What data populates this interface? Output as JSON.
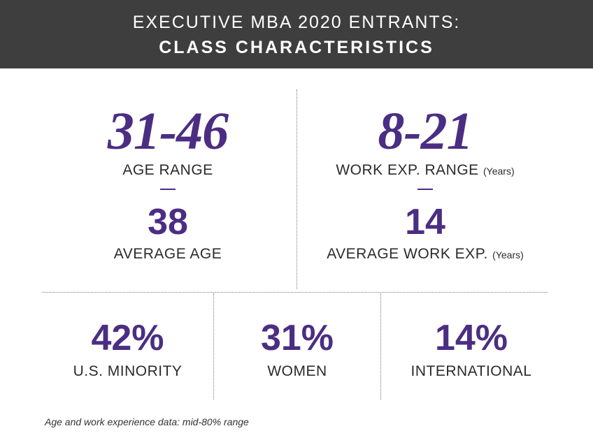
{
  "header": {
    "title_line1": "EXECUTIVE MBA 2020 ENTRANTS:",
    "title_line2": "CLASS CHARACTERISTICS"
  },
  "age": {
    "range_value": "31-46",
    "range_label": "AGE RANGE",
    "average_value": "38",
    "average_label": "AVERAGE AGE"
  },
  "work": {
    "range_value": "8-21",
    "range_label": "WORK EXP. RANGE",
    "range_unit": "(Years)",
    "average_value": "14",
    "average_label": "AVERAGE WORK EXP.",
    "average_unit": "(Years)"
  },
  "stats": [
    {
      "value": "42%",
      "label": "U.S. MINORITY"
    },
    {
      "value": "31%",
      "label": "WOMEN"
    },
    {
      "value": "14%",
      "label": "INTERNATIONAL"
    }
  ],
  "footnote": "Age and work experience data: mid-80% range",
  "colors": {
    "accent": "#4b2e83",
    "header_bg": "#3e3e3e"
  }
}
